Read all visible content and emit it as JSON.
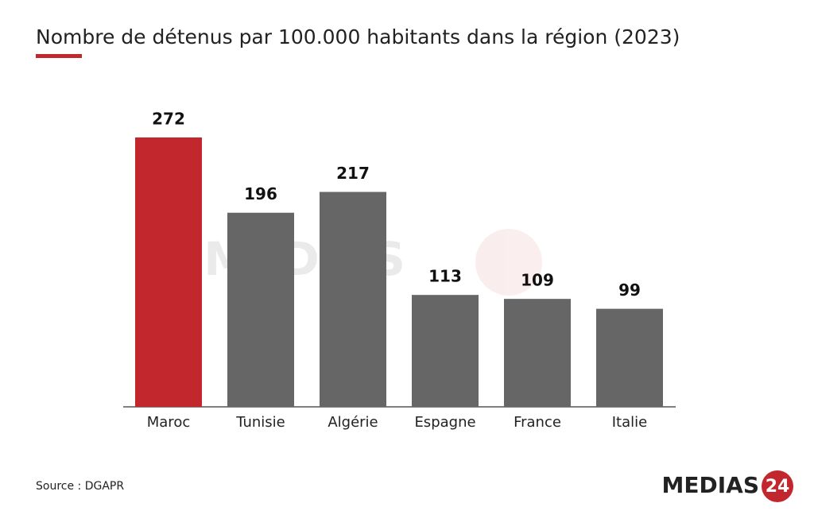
{
  "chart_data": {
    "type": "bar",
    "title": "Nombre de détenus par 100.000 habitants dans la région (2023)",
    "categories": [
      "Maroc",
      "Tunisie",
      "Algérie",
      "Espagne",
      "France",
      "Italie"
    ],
    "values": [
      272,
      196,
      217,
      113,
      109,
      99
    ],
    "colors": [
      "#c1272d",
      "#666666",
      "#666666",
      "#666666",
      "#666666",
      "#666666"
    ],
    "source": "Source : DGAPR",
    "logo": {
      "text": "MEDIAS",
      "number": "24"
    }
  }
}
